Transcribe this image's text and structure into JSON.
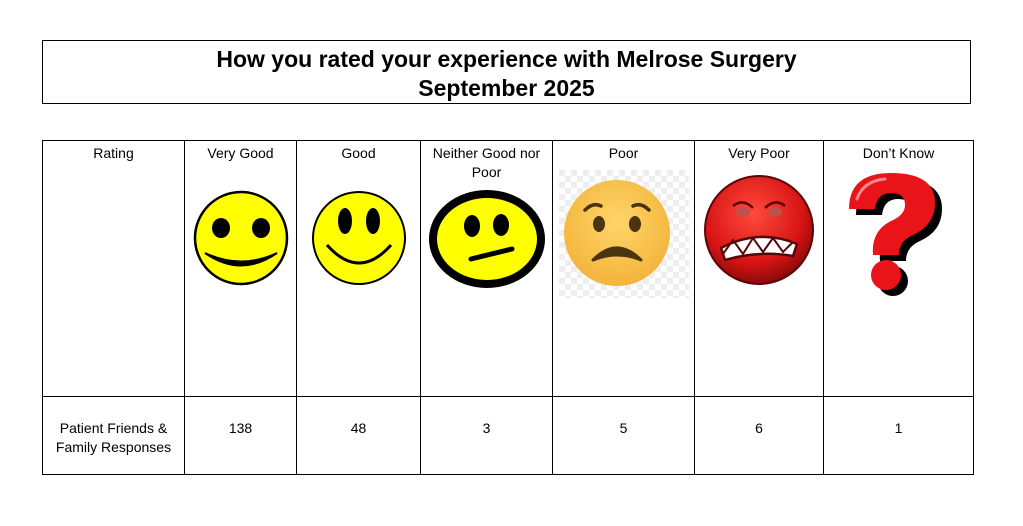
{
  "title": {
    "line1": "How you rated your experience with Melrose Surgery",
    "line2": "September 2025"
  },
  "table": {
    "row_header": "Rating",
    "columns": [
      {
        "label": "Very Good",
        "icon": "very-good-smiley-icon",
        "count": "138"
      },
      {
        "label": "Good",
        "icon": "good-smiley-icon",
        "count": "48"
      },
      {
        "label": "Neither Good nor Poor",
        "icon": "neutral-face-icon",
        "count": "3"
      },
      {
        "label": "Poor",
        "icon": "worried-face-icon",
        "count": "5"
      },
      {
        "label": "Very Poor",
        "icon": "angry-face-icon",
        "count": "6"
      },
      {
        "label": "Don’t Know",
        "icon": "question-mark-icon",
        "count": "1"
      }
    ],
    "responses_label": "Patient Friends & Family Responses"
  },
  "colors": {
    "smiley_yellow": "#ffff00",
    "poor_face": "#f7c948",
    "very_poor_red": "#d81414",
    "question_red": "#e8141a"
  }
}
